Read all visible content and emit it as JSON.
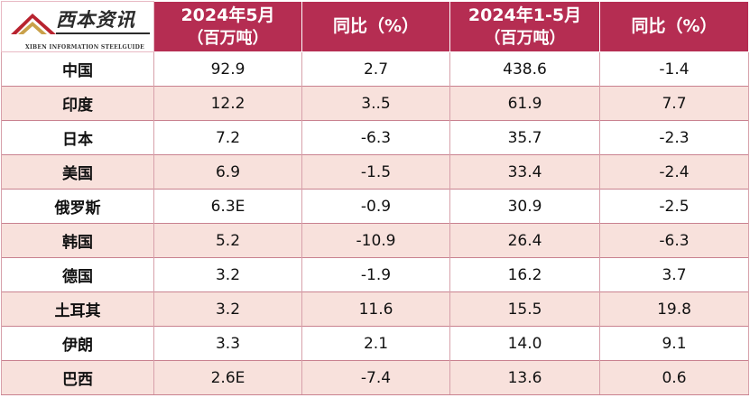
{
  "logo": {
    "text_cn": "西本资讯",
    "text_en": "XIBEN INFORMATION",
    "text_en_small": "STEELGUIDE"
  },
  "header": {
    "col_may_line1": "2024年5月",
    "col_may_line2": "（百万吨）",
    "col_yoy1": "同比（%）",
    "col_ytd_line1": "2024年1-5月",
    "col_ytd_line2": "（百万吨）",
    "col_yoy2": "同比（%）"
  },
  "colors": {
    "header_bg": "#b52d52",
    "stripe_bg": "#f8e1dc",
    "logo_red": "#b8232f"
  },
  "chart_data": {
    "type": "table",
    "columns": [
      "",
      "2024年5月（百万吨）",
      "同比（%）",
      "2024年1-5月（百万吨）",
      "同比（%）"
    ],
    "rows": [
      {
        "country": "中国",
        "may": "92.9",
        "may_yoy": "2.7",
        "ytd": "438.6",
        "ytd_yoy": "-1.4"
      },
      {
        "country": "印度",
        "may": "12.2",
        "may_yoy": "3..5",
        "ytd": "61.9",
        "ytd_yoy": "7.7"
      },
      {
        "country": "日本",
        "may": "7.2",
        "may_yoy": "-6.3",
        "ytd": "35.7",
        "ytd_yoy": "-2.3"
      },
      {
        "country": "美国",
        "may": "6.9",
        "may_yoy": "-1.5",
        "ytd": "33.4",
        "ytd_yoy": "-2.4"
      },
      {
        "country": "俄罗斯",
        "may": "6.3E",
        "may_yoy": "-0.9",
        "ytd": "30.9",
        "ytd_yoy": "-2.5"
      },
      {
        "country": "韩国",
        "may": "5.2",
        "may_yoy": "-10.9",
        "ytd": "26.4",
        "ytd_yoy": "-6.3"
      },
      {
        "country": "德国",
        "may": "3.2",
        "may_yoy": "-1.9",
        "ytd": "16.2",
        "ytd_yoy": "3.7"
      },
      {
        "country": "土耳其",
        "may": "3.2",
        "may_yoy": "11.6",
        "ytd": "15.5",
        "ytd_yoy": "19.8"
      },
      {
        "country": "伊朗",
        "may": "3.3",
        "may_yoy": "2.1",
        "ytd": "14.0",
        "ytd_yoy": "9.1"
      },
      {
        "country": "巴西",
        "may": "2.6E",
        "may_yoy": "-7.4",
        "ytd": "13.6",
        "ytd_yoy": "0.6"
      }
    ]
  }
}
